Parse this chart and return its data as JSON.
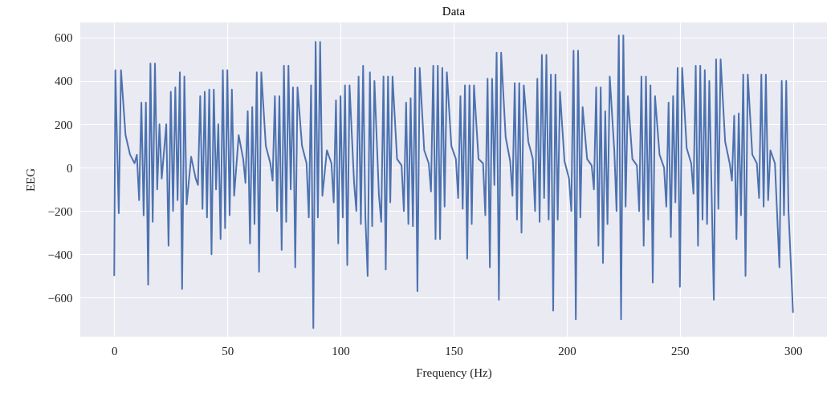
{
  "chart_data": {
    "type": "line",
    "title": "Data",
    "xlabel": "Frequency (Hz)",
    "ylabel": "EEG",
    "xlim": [
      -15,
      315
    ],
    "ylim": [
      -780,
      670
    ],
    "xticks": [
      0,
      50,
      100,
      150,
      200,
      250,
      300
    ],
    "yticks": [
      -600,
      -400,
      -200,
      0,
      200,
      400,
      600
    ],
    "grid": true,
    "series": [
      {
        "color": "#4c72b0",
        "x": [
          0,
          0.5,
          2,
          3,
          5,
          7,
          9,
          10,
          11,
          12,
          13,
          14,
          15,
          16,
          17,
          18,
          19,
          20,
          21,
          23,
          24,
          25,
          26,
          27,
          28,
          29,
          30,
          31,
          32,
          34,
          36,
          37,
          38,
          39,
          40,
          41,
          42,
          43,
          44,
          45,
          46,
          47,
          48,
          49,
          50,
          51,
          52,
          53,
          55,
          57,
          58,
          59,
          60,
          61,
          62,
          63,
          64,
          65,
          67,
          69,
          70,
          71,
          72,
          73,
          74,
          75,
          76,
          77,
          78,
          79,
          80,
          81,
          83,
          85,
          86,
          87,
          88,
          89,
          90,
          91,
          92,
          94,
          96,
          97,
          98,
          99,
          100,
          101,
          102,
          103,
          104,
          106,
          107,
          108,
          109,
          110,
          111,
          112,
          113,
          114,
          115,
          117,
          118,
          119,
          120,
          121,
          122,
          123,
          125,
          127,
          128,
          129,
          130,
          131,
          132,
          133,
          134,
          135,
          137,
          139,
          140,
          141,
          142,
          143,
          144,
          145,
          146,
          147,
          149,
          151,
          152,
          153,
          154,
          155,
          156,
          157,
          158,
          159,
          161,
          163,
          164,
          165,
          166,
          167,
          168,
          169,
          170,
          171,
          173,
          175,
          176,
          177,
          178,
          179,
          180,
          181,
          183,
          185,
          186,
          187,
          188,
          189,
          190,
          191,
          192,
          193,
          194,
          195,
          196,
          197,
          199,
          201,
          202,
          203,
          204,
          205,
          206,
          207,
          209,
          211,
          212,
          213,
          214,
          215,
          216,
          217,
          218,
          219,
          221,
          222,
          223,
          224,
          225,
          226,
          227,
          229,
          231,
          232,
          233,
          234,
          235,
          236,
          237,
          238,
          239,
          241,
          243,
          244,
          245,
          246,
          247,
          248,
          249,
          250,
          251,
          253,
          255,
          256,
          257,
          258,
          259,
          260,
          261,
          262,
          263,
          265,
          266,
          267,
          268,
          270,
          272,
          273,
          274,
          275,
          276,
          277,
          278,
          279,
          280,
          282,
          284,
          285,
          286,
          287,
          288,
          289,
          290,
          292,
          293,
          294,
          295,
          296,
          297,
          298,
          300
        ],
        "values": [
          -500,
          450,
          -210,
          450,
          150,
          60,
          20,
          60,
          -150,
          300,
          -220,
          300,
          -540,
          480,
          -250,
          480,
          -100,
          200,
          -50,
          200,
          -360,
          350,
          -200,
          370,
          -150,
          440,
          -560,
          420,
          -170,
          50,
          -50,
          -80,
          330,
          -190,
          350,
          -230,
          360,
          -400,
          360,
          -100,
          200,
          -330,
          450,
          -280,
          450,
          -220,
          360,
          -130,
          150,
          40,
          -70,
          260,
          -350,
          280,
          -260,
          440,
          -480,
          440,
          100,
          20,
          -60,
          330,
          -200,
          330,
          -380,
          470,
          -250,
          470,
          -100,
          370,
          -460,
          370,
          100,
          20,
          -230,
          380,
          -740,
          580,
          -230,
          580,
          -130,
          80,
          20,
          -160,
          310,
          -350,
          330,
          -230,
          380,
          -450,
          380,
          -70,
          -200,
          420,
          -260,
          470,
          -230,
          -500,
          440,
          -270,
          400,
          -130,
          -250,
          420,
          -470,
          420,
          -160,
          420,
          40,
          10,
          -200,
          300,
          -260,
          320,
          -270,
          460,
          -570,
          460,
          80,
          20,
          -110,
          470,
          -330,
          470,
          -330,
          460,
          -180,
          440,
          100,
          40,
          -140,
          330,
          -190,
          380,
          -420,
          380,
          -260,
          380,
          40,
          20,
          -220,
          410,
          -460,
          410,
          -80,
          530,
          -610,
          530,
          140,
          30,
          -130,
          390,
          -240,
          390,
          -300,
          380,
          120,
          40,
          -200,
          410,
          -250,
          520,
          -140,
          520,
          -240,
          430,
          -660,
          430,
          -240,
          350,
          30,
          -50,
          -200,
          540,
          -700,
          540,
          -230,
          280,
          40,
          10,
          -100,
          370,
          -360,
          370,
          -440,
          260,
          -260,
          420,
          80,
          -200,
          610,
          -700,
          610,
          -180,
          330,
          40,
          10,
          -200,
          420,
          -360,
          420,
          -240,
          380,
          -530,
          330,
          60,
          0,
          -180,
          300,
          -320,
          330,
          -160,
          460,
          -550,
          460,
          90,
          20,
          -120,
          470,
          -360,
          470,
          -240,
          450,
          -260,
          400,
          -610,
          500,
          -190,
          500,
          120,
          20,
          -60,
          240,
          -330,
          250,
          -220,
          430,
          -500,
          430,
          60,
          20,
          -140,
          430,
          -180,
          430,
          -150,
          80,
          20,
          -220,
          -460,
          400,
          -220,
          400,
          -200,
          -670
        ]
      }
    ]
  }
}
